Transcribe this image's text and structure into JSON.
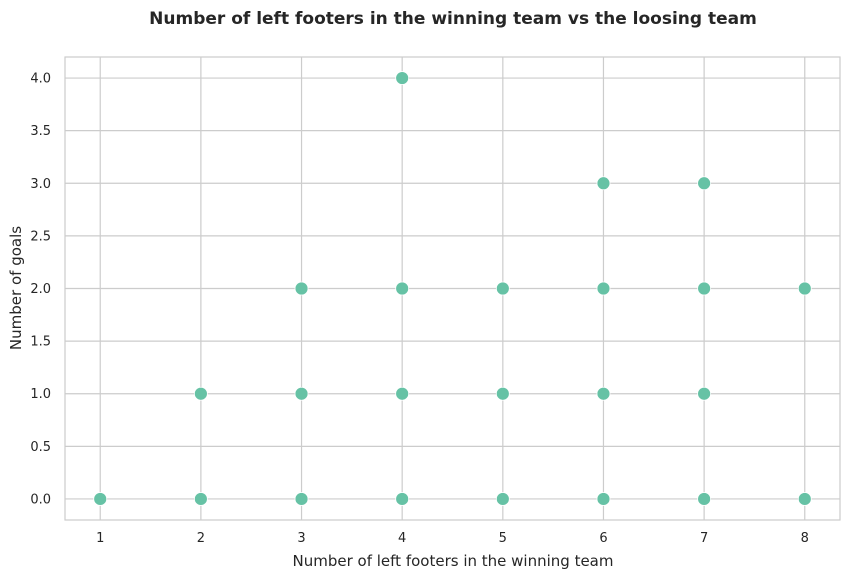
{
  "chart_data": {
    "type": "scatter",
    "title": "Number of left footers in the winning team vs the loosing team",
    "xlabel": "Number of left footers in the winning team",
    "ylabel": "Number of goals",
    "xlim": [
      0.65,
      8.35
    ],
    "ylim": [
      -0.2,
      4.2
    ],
    "x_ticks": [
      "1",
      "2",
      "3",
      "4",
      "5",
      "6",
      "7",
      "8"
    ],
    "y_ticks": [
      "0.0",
      "0.5",
      "1.0",
      "1.5",
      "2.0",
      "2.5",
      "3.0",
      "3.5",
      "4.0"
    ],
    "grid": true,
    "color": "#66c2a5",
    "points": [
      {
        "x": 1,
        "y": 0
      },
      {
        "x": 2,
        "y": 0
      },
      {
        "x": 2,
        "y": 1
      },
      {
        "x": 3,
        "y": 0
      },
      {
        "x": 3,
        "y": 1
      },
      {
        "x": 3,
        "y": 2
      },
      {
        "x": 4,
        "y": 0
      },
      {
        "x": 4,
        "y": 1
      },
      {
        "x": 4,
        "y": 2
      },
      {
        "x": 4,
        "y": 4
      },
      {
        "x": 5,
        "y": 0
      },
      {
        "x": 5,
        "y": 1
      },
      {
        "x": 5,
        "y": 2
      },
      {
        "x": 6,
        "y": 0
      },
      {
        "x": 6,
        "y": 1
      },
      {
        "x": 6,
        "y": 2
      },
      {
        "x": 6,
        "y": 3
      },
      {
        "x": 7,
        "y": 0
      },
      {
        "x": 7,
        "y": 1
      },
      {
        "x": 7,
        "y": 2
      },
      {
        "x": 7,
        "y": 3
      },
      {
        "x": 8,
        "y": 0
      },
      {
        "x": 8,
        "y": 2
      }
    ]
  }
}
